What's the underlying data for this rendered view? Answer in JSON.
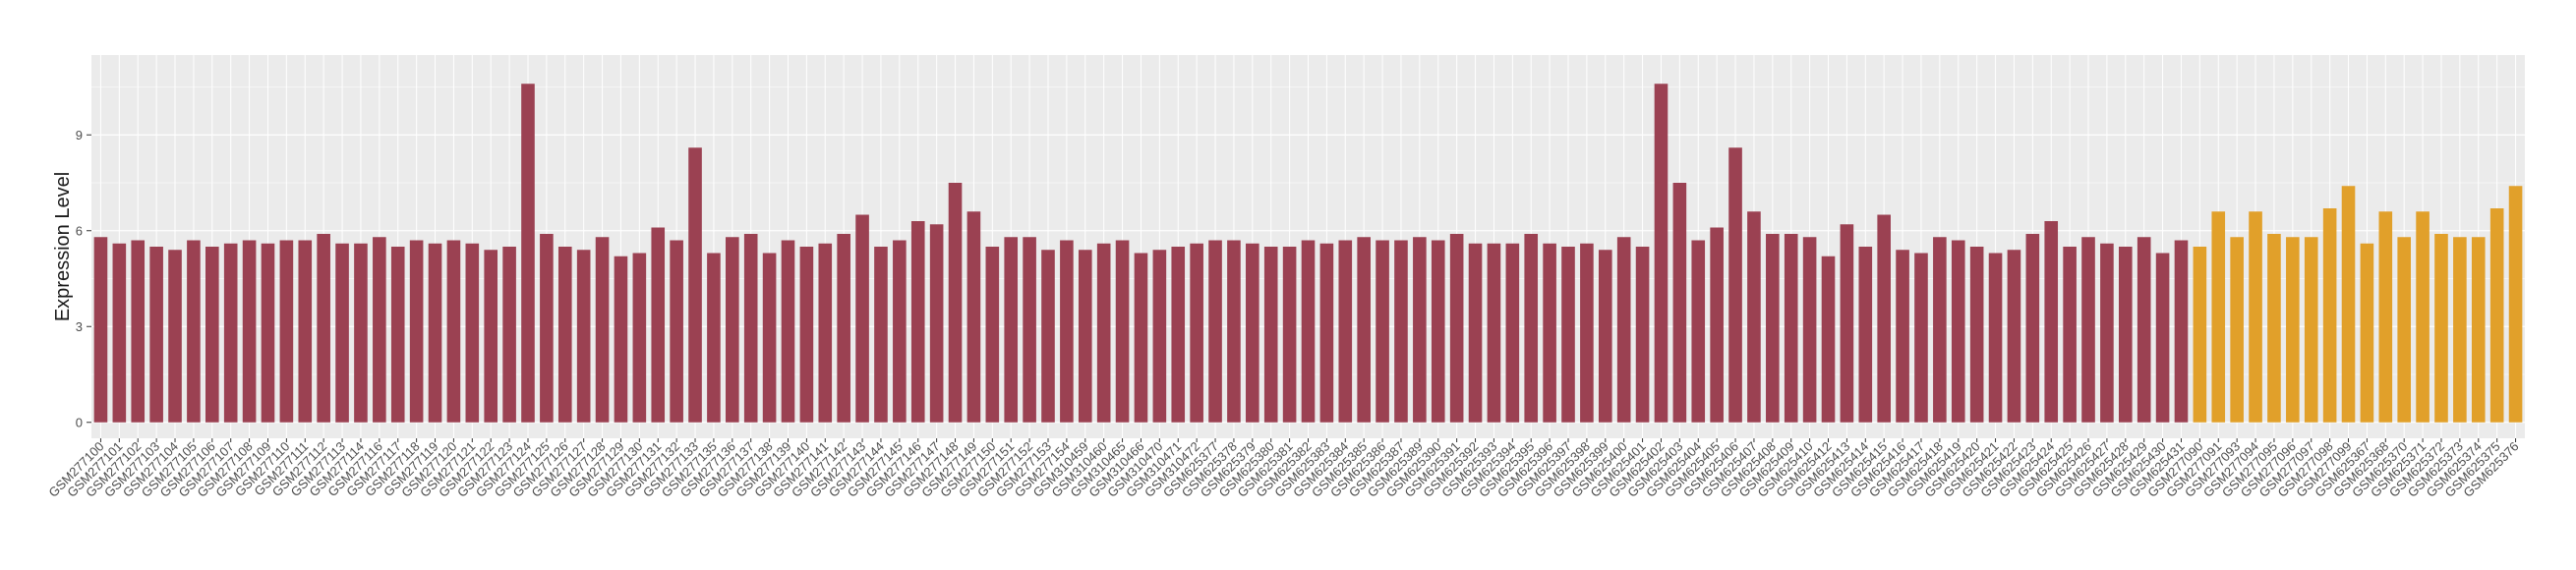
{
  "chart_data": {
    "type": "bar",
    "title": "",
    "xlabel": "",
    "ylabel": "Expression Level",
    "ylim": [
      -0.5,
      11.5
    ],
    "yticks": [
      0,
      3,
      6,
      9
    ],
    "grid": true,
    "background": "#ebebeb",
    "grid_color": "#ffffff",
    "colors": {
      "primary": "#9b4152",
      "secondary": "#e1a02a"
    },
    "categories": [
      "GSM277100",
      "GSM277101",
      "GSM277102",
      "GSM277103",
      "GSM277104",
      "GSM277105",
      "GSM277106",
      "GSM277107",
      "GSM277108",
      "GSM277109",
      "GSM277110",
      "GSM277111",
      "GSM277112",
      "GSM277113",
      "GSM277114",
      "GSM277116",
      "GSM277117",
      "GSM277118",
      "GSM277119",
      "GSM277120",
      "GSM277121",
      "GSM277122",
      "GSM277123",
      "GSM277124",
      "GSM277125",
      "GSM277126",
      "GSM277127",
      "GSM277128",
      "GSM277129",
      "GSM277130",
      "GSM277131",
      "GSM277132",
      "GSM277133",
      "GSM277135",
      "GSM277136",
      "GSM277137",
      "GSM277138",
      "GSM277139",
      "GSM277140",
      "GSM277141",
      "GSM277142",
      "GSM277143",
      "GSM277144",
      "GSM277145",
      "GSM277146",
      "GSM277147",
      "GSM277148",
      "GSM277149",
      "GSM277150",
      "GSM277151",
      "GSM277152",
      "GSM277153",
      "GSM277154",
      "GSM310459",
      "GSM310460",
      "GSM310465",
      "GSM310466",
      "GSM310470",
      "GSM310471",
      "GSM310472",
      "GSM625377",
      "GSM625378",
      "GSM625379",
      "GSM625380",
      "GSM625381",
      "GSM625382",
      "GSM625383",
      "GSM625384",
      "GSM625385",
      "GSM625386",
      "GSM625387",
      "GSM625389",
      "GSM625390",
      "GSM625391",
      "GSM625392",
      "GSM625393",
      "GSM625394",
      "GSM625395",
      "GSM625396",
      "GSM625397",
      "GSM625398",
      "GSM625399",
      "GSM625400",
      "GSM625401",
      "GSM625402",
      "GSM625403",
      "GSM625404",
      "GSM625405",
      "GSM625406",
      "GSM625407",
      "GSM625408",
      "GSM625409",
      "GSM625410",
      "GSM625412",
      "GSM625413",
      "GSM625414",
      "GSM625415",
      "GSM625416",
      "GSM625417",
      "GSM625418",
      "GSM625419",
      "GSM625420",
      "GSM625421",
      "GSM625422",
      "GSM625423",
      "GSM625424",
      "GSM625425",
      "GSM625426",
      "GSM625427",
      "GSM625428",
      "GSM625429",
      "GSM625430",
      "GSM625431",
      "GSM277090",
      "GSM277091",
      "GSM277093",
      "GSM277094",
      "GSM277095",
      "GSM277096",
      "GSM277097",
      "GSM277098",
      "GSM277099",
      "GSM625367",
      "GSM625368",
      "GSM625370",
      "GSM625371",
      "GSM625372",
      "GSM625373",
      "GSM625374",
      "GSM625375",
      "GSM625376"
    ],
    "values": [
      5.8,
      5.6,
      5.7,
      5.5,
      5.4,
      5.7,
      5.5,
      5.6,
      5.7,
      5.6,
      5.7,
      5.7,
      5.9,
      5.6,
      5.6,
      5.8,
      5.5,
      5.7,
      5.6,
      5.7,
      5.6,
      5.4,
      5.5,
      10.6,
      5.9,
      5.5,
      5.4,
      5.8,
      5.2,
      5.3,
      6.1,
      5.7,
      8.6,
      5.3,
      5.8,
      5.9,
      5.3,
      5.7,
      5.5,
      5.6,
      5.9,
      6.5,
      5.5,
      5.7,
      6.3,
      6.2,
      7.5,
      6.6,
      5.5,
      5.8,
      5.8,
      5.4,
      5.7,
      5.4,
      5.6,
      5.7,
      5.3,
      5.4,
      5.5,
      5.6,
      5.7,
      5.7,
      5.6,
      5.5,
      5.5,
      5.7,
      5.6,
      5.7,
      5.8,
      5.7,
      5.7,
      5.8,
      5.7,
      5.9,
      5.6,
      5.6,
      5.6,
      5.9,
      5.6,
      5.5,
      5.6,
      5.4,
      5.8,
      5.5,
      10.6,
      7.5,
      5.7,
      6.1,
      8.6,
      6.6,
      5.9,
      5.9,
      5.8,
      5.2,
      6.2,
      5.5,
      6.5,
      5.4,
      5.3,
      5.8,
      5.7,
      5.5,
      5.3,
      5.4,
      5.9,
      6.3,
      5.5,
      5.8,
      5.6,
      5.5,
      5.8,
      5.3,
      5.7,
      5.5,
      6.6,
      5.8,
      6.6,
      5.9,
      5.8,
      5.8,
      6.7,
      7.4,
      5.6,
      6.6,
      5.8,
      6.6,
      5.9,
      5.8,
      5.8,
      6.7,
      7.4
    ],
    "bar_colors": [
      "primary",
      "primary",
      "primary",
      "primary",
      "primary",
      "primary",
      "primary",
      "primary",
      "primary",
      "primary",
      "primary",
      "primary",
      "primary",
      "primary",
      "primary",
      "primary",
      "primary",
      "primary",
      "primary",
      "primary",
      "primary",
      "primary",
      "primary",
      "primary",
      "primary",
      "primary",
      "primary",
      "primary",
      "primary",
      "primary",
      "primary",
      "primary",
      "primary",
      "primary",
      "primary",
      "primary",
      "primary",
      "primary",
      "primary",
      "primary",
      "primary",
      "primary",
      "primary",
      "primary",
      "primary",
      "primary",
      "primary",
      "primary",
      "primary",
      "primary",
      "primary",
      "primary",
      "primary",
      "primary",
      "primary",
      "primary",
      "primary",
      "primary",
      "primary",
      "primary",
      "primary",
      "primary",
      "primary",
      "primary",
      "primary",
      "primary",
      "primary",
      "primary",
      "primary",
      "primary",
      "primary",
      "primary",
      "primary",
      "primary",
      "primary",
      "primary",
      "primary",
      "primary",
      "primary",
      "primary",
      "primary",
      "primary",
      "primary",
      "primary",
      "primary",
      "primary",
      "primary",
      "primary",
      "primary",
      "primary",
      "primary",
      "primary",
      "primary",
      "primary",
      "primary",
      "primary",
      "primary",
      "primary",
      "primary",
      "primary",
      "primary",
      "primary",
      "primary",
      "primary",
      "primary",
      "primary",
      "primary",
      "primary",
      "primary",
      "primary",
      "primary",
      "primary",
      "primary",
      "secondary",
      "secondary",
      "secondary",
      "secondary",
      "secondary",
      "secondary",
      "secondary",
      "secondary",
      "secondary",
      "secondary",
      "secondary",
      "secondary",
      "secondary",
      "secondary",
      "secondary",
      "secondary",
      "secondary",
      "secondary",
      "secondary"
    ]
  }
}
